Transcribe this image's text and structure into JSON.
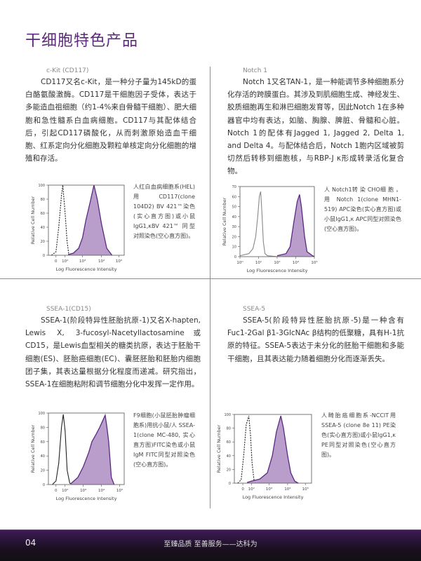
{
  "page_title": "干细胞特色产品",
  "colors": {
    "accent": "#5b2a7a",
    "fill": "#b99dcb",
    "stroke": "#5a2a82",
    "footer": "#3d1a55"
  },
  "sections": [
    {
      "heading": "c-Kit (CD117)",
      "body": "CD117又名c-Kit，是一种分子量为145kD的蛋白酪氨酸激酶。CD117是干细胞因子受体，表达于多能造血祖细胞（约1-4%来自骨髓干细胞）、肥大细胞和急性髓系白血病细胞。CD117与其配体结合后，引起CD117磷酸化，从而刺激原始造血干细胞、红系定向分化细胞及颗粒单核定向分化细胞的增殖和存活。",
      "caption": "人红白血病细胞系(HEL)用CD117(clone 104D2) BV 421™染色(实心直方图)或小鼠IgG1,κBV 421™ 同型对照染色(空心直方图)。"
    },
    {
      "heading": "Notch 1",
      "body": "Notch 1又名TAN-1，是一种能调节多种细胞系分化存活的跨膜蛋白。其涉及到肌细胞生成、神经发生、胶质细胞再生和淋巴细胞发育等，因此Notch 1在多种器官中均有表达，如脑、胸腺、脾脏、骨髓和心脏。Notch 1的配体有Jagged 1, Jagged 2, Delta 1, and Delta 4。与配体结合后，Notch 1胞内区域被剪切然后转移到细胞核，与RBP-J κ形成转录活化复合物。",
      "caption": "人 Notch1转 染 CHO细 胞 ，用 Notch 1(clone MHN1-519) APC染色(实心直方图)或小鼠IgG1,κ APC同型对照染色(空心直方图)。"
    },
    {
      "heading": "SSEA-1(CD15)",
      "body": "SSEA-1(阶段特异性胚胎抗原-1)又名X-hapten, Lewis X, 3-fucosyl-Nacetyllactosamine或CD15，是Lewis血型相关的糖类抗原，表达于胚胎干细胞(ES)、胚胎癌细胞(EC)、囊胚胚胎和胚胎内细胞团子集，其表达量根据分化程度而递减。研究指出，SSEA-1在细胞粘附和调节细胞分化中发挥一定作用。",
      "caption": "F9细胞(小鼠胚胎肿瘤细胞系)用抗小鼠/人 SSEA-1(clone MC-480, 实心直方图)FITC染色或小鼠IgM FITC同型对照染色(空心直方图)。"
    },
    {
      "heading": "SSEA-5",
      "body": "SSEA-5(阶段特异性胚胎抗原-5)是一种含有Fuc1-2Gal β1-3GlcNAc β结构的低聚糖，具有H-1抗原的特征。SSEA-5表达于未分化的胚胎干细胞和多能干细胞，且其表达能力随着细胞分化而逐渐丢失。",
      "caption": "人畸胎癌细胞系-NCCIT用SSEA-5 (clone 8e 11) PE染色(实心直方图)或小鼠IgG1,κ PE同型对照染色(空心直方图)。"
    }
  ],
  "chart_data": [
    {
      "type": "area",
      "xlabel": "Log Fluorescence Intensity",
      "ylabel": "Relative Cell Number",
      "xscale": "biexponential",
      "ylim": [
        0,
        100
      ],
      "yticks": [
        0,
        20,
        40,
        60,
        80,
        100
      ],
      "xticks": [
        {
          "value": 0,
          "label": "0"
        },
        {
          "value": 100,
          "label": "10²"
        },
        {
          "value": 1000,
          "label": "10³"
        },
        {
          "value": 10000,
          "label": "10⁴"
        },
        {
          "value": 100000,
          "label": "10⁵"
        }
      ],
      "series": [
        {
          "style": "dashed-open",
          "points": [
            [
              -50,
              0
            ],
            [
              0,
              5
            ],
            [
              30,
              40
            ],
            [
              60,
              85
            ],
            [
              75,
              100
            ],
            [
              100,
              60
            ],
            [
              130,
              20
            ],
            [
              160,
              3
            ],
            [
              200,
              0
            ]
          ]
        },
        {
          "style": "filled",
          "points": [
            [
              150,
              1
            ],
            [
              300,
              3
            ],
            [
              600,
              10
            ],
            [
              1000,
              25
            ],
            [
              1500,
              50
            ],
            [
              2500,
              75
            ],
            [
              4000,
              100
            ],
            [
              6000,
              80
            ],
            [
              10000,
              45
            ],
            [
              20000,
              10
            ],
            [
              40000,
              0
            ]
          ]
        }
      ]
    },
    {
      "type": "area",
      "xlabel": "Log Fluorescence Intensity",
      "ylabel": "Relative Cell Number",
      "xscale": "log",
      "ylim": [
        0,
        70
      ],
      "yticks": [
        0,
        10,
        20,
        30,
        40,
        50,
        60,
        70
      ],
      "xticks": [
        {
          "value": 1,
          "label": "10⁰"
        },
        {
          "value": 10,
          "label": "10¹"
        },
        {
          "value": 100,
          "label": "10²"
        },
        {
          "value": 1000,
          "label": "10³"
        },
        {
          "value": 10000,
          "label": "10⁴"
        }
      ],
      "series": [
        {
          "style": "gray-open",
          "points": [
            [
              1,
              1
            ],
            [
              3,
              3
            ],
            [
              5,
              8
            ],
            [
              7,
              20
            ],
            [
              9,
              40
            ],
            [
              11,
              60
            ],
            [
              13,
              65
            ],
            [
              15,
              45
            ],
            [
              18,
              15
            ],
            [
              22,
              3
            ],
            [
              30,
              1
            ],
            [
              100,
              0
            ]
          ]
        },
        {
          "style": "filled",
          "points": [
            [
              100,
              1
            ],
            [
              300,
              3
            ],
            [
              500,
              10
            ],
            [
              800,
              35
            ],
            [
              1200,
              55
            ],
            [
              1600,
              62
            ],
            [
              2000,
              50
            ],
            [
              3000,
              20
            ],
            [
              4000,
              5
            ],
            [
              8000,
              1
            ],
            [
              10000,
              0
            ]
          ]
        }
      ]
    },
    {
      "type": "area",
      "xlabel": "Log Fluorescence Intensity",
      "ylabel": "Relative Cell Number",
      "xscale": "biexponential",
      "ylim": [
        0,
        100
      ],
      "yticks": [
        0,
        20,
        40,
        60,
        80,
        100
      ],
      "xticks": [
        {
          "value": 0,
          "label": "0"
        },
        {
          "value": 100,
          "label": "10²"
        },
        {
          "value": 1000,
          "label": "10³"
        },
        {
          "value": 10000,
          "label": "10⁴"
        },
        {
          "value": 100000,
          "label": "10⁵"
        }
      ],
      "series": [
        {
          "style": "solid-open",
          "points": [
            [
              -40,
              0
            ],
            [
              0,
              5
            ],
            [
              30,
              30
            ],
            [
              60,
              80
            ],
            [
              80,
              98
            ],
            [
              100,
              75
            ],
            [
              130,
              20
            ],
            [
              180,
              2
            ],
            [
              250,
              0
            ]
          ]
        },
        {
          "style": "filled",
          "points": [
            [
              200,
              1
            ],
            [
              500,
              10
            ],
            [
              1000,
              25
            ],
            [
              2000,
              45
            ],
            [
              3000,
              60
            ],
            [
              5000,
              70
            ],
            [
              8000,
              80
            ],
            [
              12000,
              90
            ],
            [
              16000,
              97
            ],
            [
              20000,
              80
            ],
            [
              25000,
              60
            ],
            [
              35000,
              10
            ],
            [
              50000,
              0
            ]
          ]
        }
      ]
    },
    {
      "type": "area",
      "xlabel": "Log Fluorescence Intensity",
      "ylabel": "Relative Cell Number",
      "xscale": "biexponential",
      "ylim": [
        0,
        100
      ],
      "yticks": [
        0,
        20,
        40,
        60,
        80,
        100
      ],
      "xticks": [
        {
          "value": 0,
          "label": "0"
        },
        {
          "value": 100,
          "label": "10²"
        },
        {
          "value": 1000,
          "label": "10³"
        },
        {
          "value": 10000,
          "label": "10⁴"
        },
        {
          "value": 100000,
          "label": "10⁵"
        }
      ],
      "series": [
        {
          "style": "dashed-open",
          "points": [
            [
              -60,
              0
            ],
            [
              -20,
              5
            ],
            [
              10,
              40
            ],
            [
              40,
              85
            ],
            [
              70,
              98
            ],
            [
              90,
              70
            ],
            [
              110,
              30
            ],
            [
              140,
              5
            ],
            [
              180,
              0
            ]
          ]
        },
        {
          "style": "filled",
          "points": [
            [
              50,
              1
            ],
            [
              100,
              3
            ],
            [
              300,
              6
            ],
            [
              800,
              15
            ],
            [
              1500,
              40
            ],
            [
              2500,
              75
            ],
            [
              4300,
              98
            ],
            [
              6000,
              80
            ],
            [
              10000,
              40
            ],
            [
              15000,
              15
            ],
            [
              25000,
              3
            ],
            [
              40000,
              0
            ]
          ]
        }
      ]
    }
  ],
  "footer": {
    "page_number": "04",
    "slogan": "至臻品质 至善服务——达科为"
  }
}
